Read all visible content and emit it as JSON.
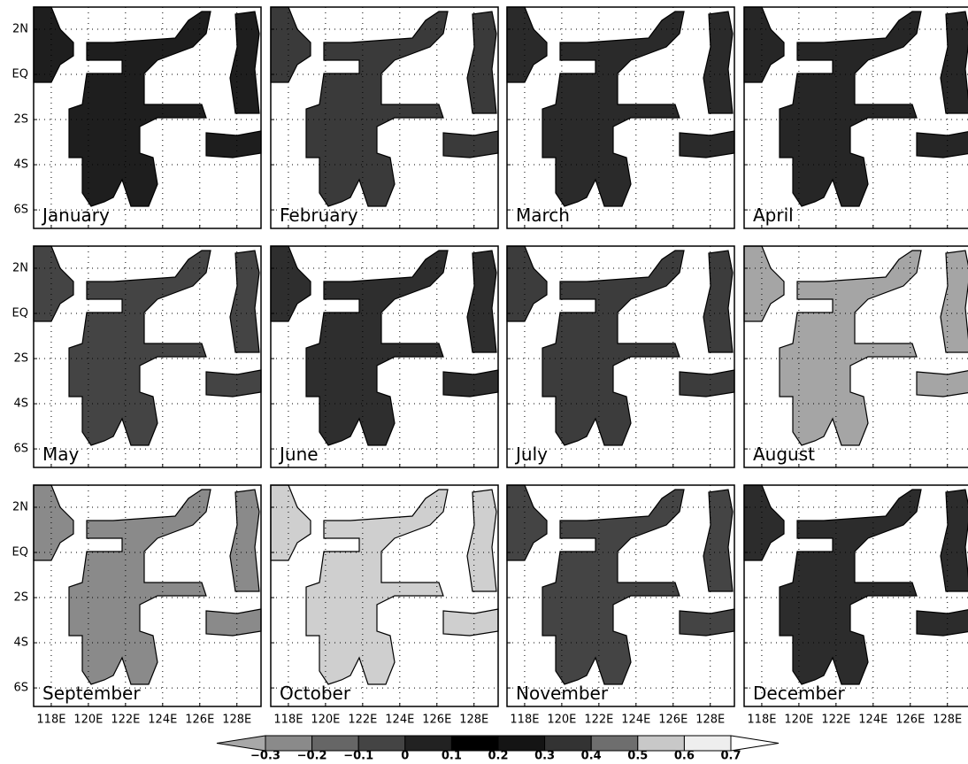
{
  "panels": [
    {
      "label": "January"
    },
    {
      "label": "February"
    },
    {
      "label": "March"
    },
    {
      "label": "April"
    },
    {
      "label": "May"
    },
    {
      "label": "June"
    },
    {
      "label": "July"
    },
    {
      "label": "August"
    },
    {
      "label": "September"
    },
    {
      "label": "October"
    },
    {
      "label": "November"
    },
    {
      "label": "December"
    }
  ],
  "map": {
    "lon_range": [
      117.05,
      129.3
    ],
    "lat_range": [
      -6.82,
      2.98
    ],
    "lon_ticks": [
      {
        "value": 118,
        "label": "118E"
      },
      {
        "value": 120,
        "label": "120E"
      },
      {
        "value": 122,
        "label": "122E"
      },
      {
        "value": 124,
        "label": "124E"
      },
      {
        "value": 126,
        "label": "126E"
      },
      {
        "value": 128,
        "label": "128E"
      }
    ],
    "lat_ticks": [
      {
        "value": 2,
        "label": "2N"
      },
      {
        "value": 0,
        "label": "EQ"
      },
      {
        "value": -2,
        "label": "2S"
      },
      {
        "value": -4,
        "label": "4S"
      },
      {
        "value": -6,
        "label": "6S"
      }
    ]
  },
  "colorbar": {
    "levels": [
      {
        "value": -0.3,
        "label": "−0.3"
      },
      {
        "value": -0.2,
        "label": "−0.2"
      },
      {
        "value": -0.1,
        "label": "−0.1"
      },
      0,
      0.1,
      0.2,
      0.3,
      0.4,
      0.5,
      0.6,
      0.7
    ],
    "colors": [
      "#a8a8a8",
      "#8a8a8a",
      "#666666",
      "#444444",
      "#222222",
      "#000000",
      "#141414",
      "#333333",
      "#6e6e6e",
      "#c8c8c8",
      "#eeeeee",
      "#ffffff"
    ]
  }
}
